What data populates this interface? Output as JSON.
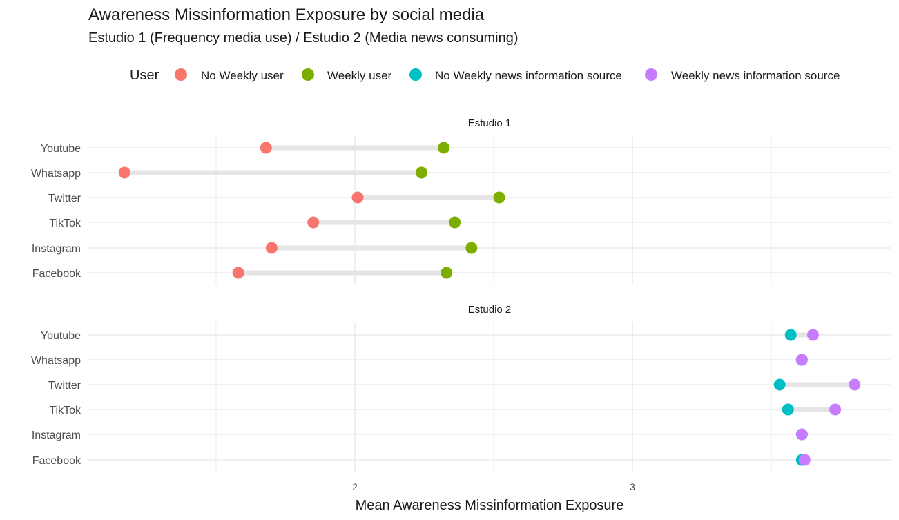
{
  "chart_data": {
    "type": "dumbbell",
    "title": "Awareness Missinformation Exposure by social media",
    "subtitle": "Estudio 1 (Frequency media use) / Estudio 2 (Media news consuming)",
    "xlabel": "Mean Awareness Missinformation Exposure",
    "ylabel": "",
    "xlim": [
      1.04,
      3.93
    ],
    "x_ticks": [
      2,
      3
    ],
    "x_minor_gridlines": [
      1.5,
      2.5,
      3.5
    ],
    "grid": true,
    "legend": {
      "title": "User",
      "position": "top",
      "entries": [
        {
          "name": "No Weekly user",
          "color": "#F8766D"
        },
        {
          "name": "Weekly user",
          "color": "#7CAE00"
        },
        {
          "name": "No Weekly news information source",
          "color": "#00BFC4"
        },
        {
          "name": "Weekly news information source",
          "color": "#C77CFF"
        }
      ]
    },
    "categories": [
      "Youtube",
      "Whatsapp",
      "Twitter",
      "TikTok",
      "Instagram",
      "Facebook"
    ],
    "panels": [
      {
        "name": "Estudio 1",
        "series": [
          {
            "name": "No Weekly user",
            "color": "#F8766D",
            "values": [
              1.68,
              1.17,
              2.01,
              1.85,
              1.7,
              1.58
            ]
          },
          {
            "name": "Weekly user",
            "color": "#7CAE00",
            "values": [
              2.32,
              2.24,
              2.52,
              2.36,
              2.42,
              2.33
            ]
          }
        ]
      },
      {
        "name": "Estudio 2",
        "series": [
          {
            "name": "No Weekly news information source",
            "color": "#00BFC4",
            "values": [
              3.57,
              3.61,
              3.53,
              3.56,
              3.61,
              3.61
            ]
          },
          {
            "name": "Weekly news information source",
            "color": "#C77CFF",
            "values": [
              3.65,
              3.61,
              3.8,
              3.73,
              3.61,
              3.62
            ]
          }
        ]
      }
    ]
  }
}
